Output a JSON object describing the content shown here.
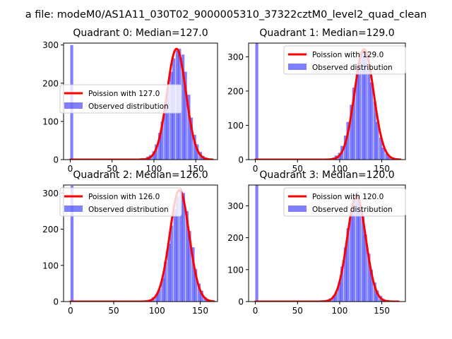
{
  "suptitle": "a file: modeM0/AS1A11_030T02_9000005310_37322cztM0_level2_quad_clean",
  "colors": {
    "hist": "#0000ff",
    "fit": "#ff0000"
  },
  "chart_data": [
    {
      "type": "bar",
      "title": "Quadrant 0: Median=127.0",
      "legend": {
        "placement": "center-left",
        "entries": [
          "Poission with 127.0",
          "Observed distribution"
        ]
      },
      "xlim": [
        -8,
        176
      ],
      "ylim": [
        0,
        305
      ],
      "xticks": [
        0,
        50,
        100,
        150
      ],
      "yticks": [
        0,
        100,
        200,
        300
      ],
      "hist": {
        "bin_width": 3.5,
        "bins": [
          [
            0,
            300
          ],
          [
            77,
            2
          ],
          [
            84,
            4
          ],
          [
            91,
            8
          ],
          [
            94,
            12
          ],
          [
            98,
            22
          ],
          [
            101,
            40
          ],
          [
            105,
            70
          ],
          [
            108,
            100
          ],
          [
            112,
            150
          ],
          [
            115,
            190
          ],
          [
            119,
            230
          ],
          [
            122,
            265
          ],
          [
            126,
            285
          ],
          [
            129,
            290
          ],
          [
            133,
            275
          ],
          [
            136,
            230
          ],
          [
            140,
            170
          ],
          [
            143,
            110
          ],
          [
            147,
            65
          ],
          [
            150,
            40
          ],
          [
            154,
            20
          ],
          [
            157,
            10
          ],
          [
            161,
            5
          ]
        ]
      },
      "fit": {
        "mean": 127.0,
        "sigma": 11.3,
        "peak": 290,
        "range": [
          0,
          170
        ]
      }
    },
    {
      "type": "bar",
      "title": "Quadrant 1: Median=129.0",
      "legend": {
        "placement": "top-right",
        "entries": [
          "Poission with 129.0",
          "Observed distribution"
        ]
      },
      "xlim": [
        -8,
        178
      ],
      "ylim": [
        0,
        340
      ],
      "xticks": [
        0,
        50,
        100,
        150
      ],
      "yticks": [
        0,
        100,
        200,
        300
      ],
      "hist": {
        "bin_width": 3.5,
        "bins": [
          [
            0,
            340
          ],
          [
            84,
            2
          ],
          [
            91,
            6
          ],
          [
            94,
            12
          ],
          [
            98,
            20
          ],
          [
            101,
            40
          ],
          [
            105,
            70
          ],
          [
            108,
            110
          ],
          [
            112,
            160
          ],
          [
            115,
            210
          ],
          [
            119,
            260
          ],
          [
            122,
            300
          ],
          [
            126,
            320
          ],
          [
            129,
            310
          ],
          [
            133,
            270
          ],
          [
            136,
            225
          ],
          [
            140,
            170
          ],
          [
            143,
            110
          ],
          [
            147,
            65
          ],
          [
            150,
            35
          ],
          [
            154,
            18
          ],
          [
            157,
            8
          ],
          [
            161,
            4
          ]
        ]
      },
      "fit": {
        "mean": 129.0,
        "sigma": 11.4,
        "peak": 322,
        "range": [
          0,
          172
        ]
      }
    },
    {
      "type": "bar",
      "title": "Quadrant 2: Median=126.0",
      "legend": {
        "placement": "top-left",
        "entries": [
          "Poission with 126.0",
          "Observed distribution"
        ]
      },
      "xlim": [
        -8,
        170
      ],
      "ylim": [
        0,
        322
      ],
      "xticks": [
        0,
        50,
        100,
        150
      ],
      "yticks": [
        0,
        100,
        200,
        300
      ],
      "hist": {
        "bin_width": 3.5,
        "bins": [
          [
            0,
            320
          ],
          [
            80,
            2
          ],
          [
            87,
            4
          ],
          [
            91,
            6
          ],
          [
            94,
            12
          ],
          [
            98,
            20
          ],
          [
            101,
            35
          ],
          [
            105,
            65
          ],
          [
            108,
            110
          ],
          [
            112,
            160
          ],
          [
            115,
            210
          ],
          [
            119,
            255
          ],
          [
            122,
            290
          ],
          [
            126,
            305
          ],
          [
            129,
            300
          ],
          [
            133,
            250
          ],
          [
            136,
            195
          ],
          [
            140,
            150
          ],
          [
            143,
            90
          ],
          [
            147,
            50
          ],
          [
            150,
            30
          ],
          [
            154,
            12
          ],
          [
            157,
            6
          ]
        ]
      },
      "fit": {
        "mean": 126.0,
        "sigma": 11.2,
        "peak": 308,
        "range": [
          0,
          166
        ]
      }
    },
    {
      "type": "bar",
      "title": "Quadrant 3: Median=120.0",
      "legend": {
        "placement": "top-right",
        "entries": [
          "Poission with 120.0",
          "Observed distribution"
        ]
      },
      "xlim": [
        -8,
        178
      ],
      "ylim": [
        0,
        365
      ],
      "xticks": [
        0,
        50,
        100,
        150
      ],
      "yticks": [
        0,
        100,
        200,
        300
      ],
      "hist": {
        "bin_width": 3.5,
        "bins": [
          [
            0,
            365
          ],
          [
            66,
            2
          ],
          [
            77,
            4
          ],
          [
            84,
            6
          ],
          [
            87,
            10
          ],
          [
            91,
            18
          ],
          [
            94,
            30
          ],
          [
            98,
            60
          ],
          [
            101,
            110
          ],
          [
            105,
            170
          ],
          [
            108,
            230
          ],
          [
            112,
            285
          ],
          [
            115,
            330
          ],
          [
            119,
            345
          ],
          [
            122,
            320
          ],
          [
            126,
            270
          ],
          [
            129,
            210
          ],
          [
            133,
            150
          ],
          [
            136,
            100
          ],
          [
            140,
            60
          ],
          [
            143,
            35
          ],
          [
            147,
            18
          ],
          [
            150,
            8
          ],
          [
            154,
            3
          ]
        ]
      },
      "fit": {
        "mean": 120.0,
        "sigma": 11.0,
        "peak": 330,
        "range": [
          0,
          170
        ]
      }
    }
  ]
}
